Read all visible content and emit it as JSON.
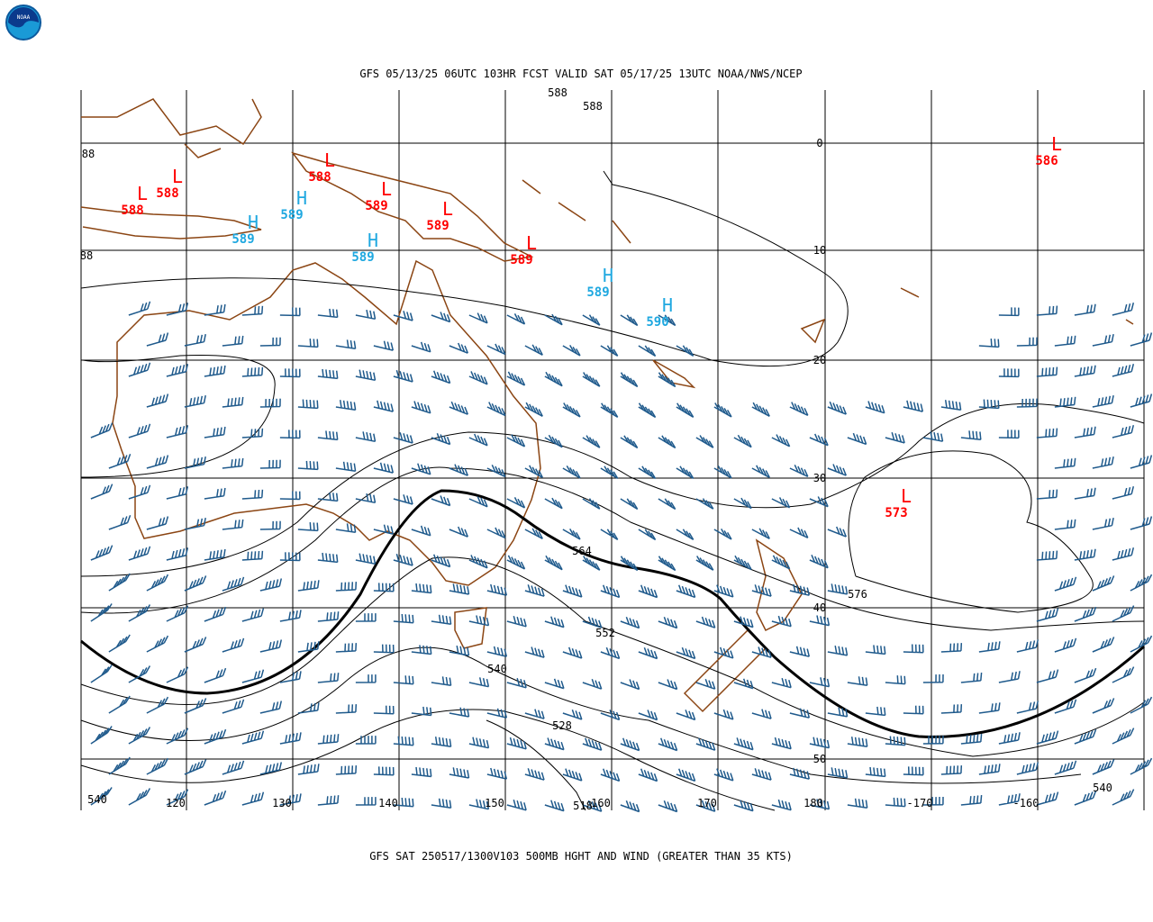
{
  "logo": "NOAA",
  "header": {
    "title": "GFS 05/13/25 06UTC 103HR FCST VALID SAT 05/17/25 13UTC NOAA/NWS/NCEP"
  },
  "footer": {
    "caption": "GFS SAT 250517/1300V103 500MB HGHT AND WIND (GREATER THAN 35 KTS)"
  },
  "lat_labels": [
    "0",
    "10",
    "20",
    "30",
    "40",
    "50"
  ],
  "lon_labels": [
    "120",
    "130",
    "140",
    "150",
    "160",
    "170",
    "180",
    "-170",
    "-160"
  ],
  "pressure_centers": [
    {
      "kind": "L",
      "value": "588"
    },
    {
      "kind": "L",
      "value": "588"
    },
    {
      "kind": "L",
      "value": "588"
    },
    {
      "kind": "L",
      "value": "589"
    },
    {
      "kind": "L",
      "value": "589"
    },
    {
      "kind": "L",
      "value": "589"
    },
    {
      "kind": "L",
      "value": "586"
    },
    {
      "kind": "L",
      "value": "573"
    },
    {
      "kind": "H",
      "value": "589"
    },
    {
      "kind": "H",
      "value": "589"
    },
    {
      "kind": "H",
      "value": "589"
    },
    {
      "kind": "H",
      "value": "589"
    },
    {
      "kind": "H",
      "value": "590"
    }
  ],
  "contour_labels": [
    "588",
    "588",
    "88",
    "88",
    "564",
    "576",
    "552",
    "540",
    "528",
    "518",
    "540",
    "540"
  ]
}
